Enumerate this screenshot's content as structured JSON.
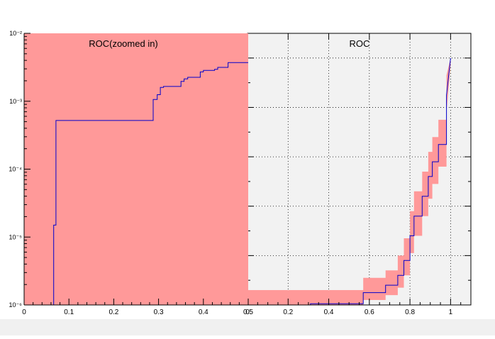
{
  "canvas": {
    "background": "#ffffff",
    "bottom_strip": "#f0f0f0"
  },
  "chart_data": [
    {
      "type": "line",
      "title": "ROC(zoomed in)",
      "xlabel": "",
      "ylabel": "",
      "xlim": [
        0,
        0.5
      ],
      "ylim": [
        1e-06,
        0.01
      ],
      "yscale": "log",
      "grid": false,
      "frame_color": "#ff9999",
      "line_color": "#0000cc",
      "x_ticks": [
        0,
        0.1,
        0.2,
        0.3,
        0.4,
        0.5
      ],
      "x_tick_labels": [
        "0",
        "0.1",
        "0.2",
        "0.3",
        "0.4",
        "0.5"
      ],
      "y_ticks": [
        1e-06,
        1e-05,
        0.0001,
        0.001,
        0.01
      ],
      "y_tick_labels": [
        "10⁻⁶",
        "10⁻⁵",
        "10⁻⁴",
        "10⁻³",
        "10⁻²"
      ],
      "series": [
        {
          "x": [
            0.066,
            0.066,
            0.071,
            0.071,
            0.288,
            0.288,
            0.297,
            0.297,
            0.304,
            0.304,
            0.311,
            0.311,
            0.35,
            0.35,
            0.357,
            0.357,
            0.365,
            0.365,
            0.393,
            0.393,
            0.4,
            0.4,
            0.425,
            0.425,
            0.432,
            0.432,
            0.455,
            0.455,
            0.5
          ],
          "y": [
            1e-06,
            1.5e-05,
            1.5e-05,
            0.00052,
            0.00052,
            0.00106,
            0.00106,
            0.00125,
            0.00125,
            0.0016,
            0.0016,
            0.00165,
            0.00165,
            0.00196,
            0.00196,
            0.00213,
            0.00213,
            0.00225,
            0.00225,
            0.0027,
            0.0027,
            0.00285,
            0.00285,
            0.00295,
            0.00295,
            0.00315,
            0.00315,
            0.0037,
            0.0037
          ]
        }
      ]
    },
    {
      "type": "line",
      "title": "ROC",
      "xlabel": "",
      "ylabel": "",
      "xlim": [
        0,
        1.1
      ],
      "ylim": [
        0,
        1.1
      ],
      "grid": true,
      "band_color": "#ff9999",
      "line_color": "#0000cc",
      "x_ticks": [
        0,
        0.2,
        0.4,
        0.6,
        0.8,
        1.0
      ],
      "x_tick_labels": [
        "0",
        "0.2",
        "0.4",
        "0.6",
        "0.8",
        "1"
      ],
      "series": [
        {
          "x": [
            0.0,
            0.31,
            0.31,
            0.57,
            0.57,
            0.68,
            0.68,
            0.74,
            0.74,
            0.77,
            0.77,
            0.8,
            0.8,
            0.82,
            0.82,
            0.86,
            0.86,
            0.89,
            0.89,
            0.91,
            0.91,
            0.94,
            0.94,
            0.98,
            0.98,
            1.0
          ],
          "y": [
            0.0,
            0.0,
            0.005,
            0.005,
            0.05,
            0.05,
            0.08,
            0.08,
            0.12,
            0.12,
            0.18,
            0.18,
            0.28,
            0.28,
            0.36,
            0.36,
            0.44,
            0.44,
            0.52,
            0.52,
            0.58,
            0.58,
            0.65,
            0.65,
            0.85,
            1.0
          ],
          "band_y_low": [
            0.0,
            0.0,
            0.0,
            0.0,
            0.02,
            0.02,
            0.04,
            0.04,
            0.07,
            0.07,
            0.12,
            0.12,
            0.21,
            0.21,
            0.28,
            0.28,
            0.36,
            0.36,
            0.43,
            0.43,
            0.49,
            0.49,
            0.56,
            0.56,
            0.78,
            0.97
          ],
          "band_y_high": [
            0.06,
            0.06,
            0.06,
            0.06,
            0.11,
            0.11,
            0.14,
            0.14,
            0.2,
            0.2,
            0.27,
            0.27,
            0.38,
            0.38,
            0.46,
            0.46,
            0.54,
            0.54,
            0.62,
            0.62,
            0.68,
            0.68,
            0.75,
            0.75,
            0.93,
            1.0
          ]
        }
      ]
    }
  ]
}
